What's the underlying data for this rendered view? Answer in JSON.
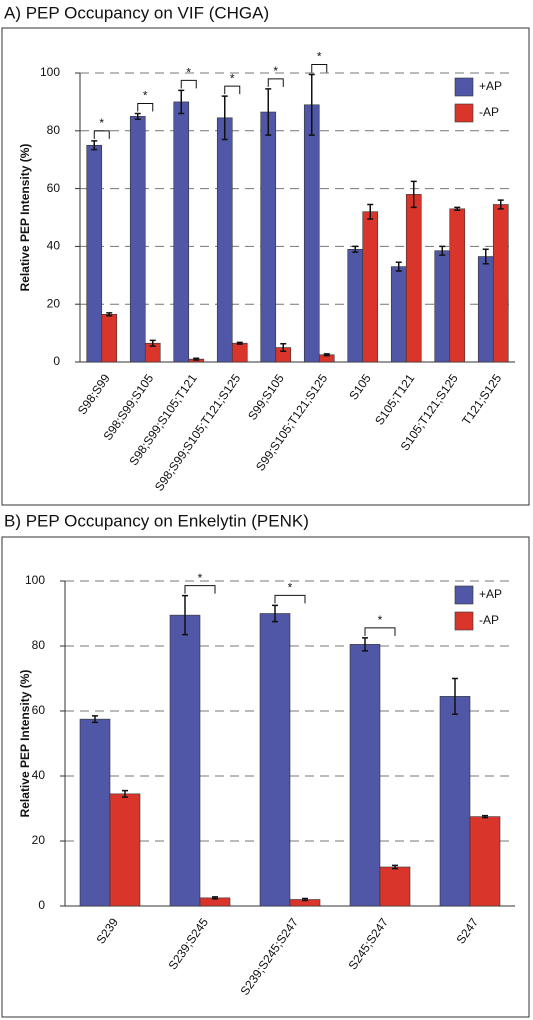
{
  "chart_data": [
    {
      "type": "bar",
      "title": "A) PEP Occupancy on VIF (CHGA)",
      "y_label": "Relative PEP Intensity (%)",
      "categories": [
        "S98;S99",
        "S98;S99;S105",
        "S98;S99;S105;T121",
        "S98;S99;S105;T121;S125",
        "S99;S105",
        "S99;S105;T121;S125",
        "S105",
        "S105;T121",
        "S105;T121;S125",
        "T121;S125"
      ],
      "series": [
        {
          "name": "+AP",
          "color": "#4f57a6",
          "values": [
            75,
            85,
            90,
            84.5,
            86.5,
            89,
            39,
            33,
            38.5,
            36.5
          ],
          "errors": [
            1.5,
            1,
            4,
            7.5,
            8,
            10.5,
            1,
            1.5,
            1.5,
            2.5
          ]
        },
        {
          "name": "-AP",
          "color": "#d9352b",
          "values": [
            16.5,
            6.5,
            1,
            6.5,
            5,
            2.5,
            52,
            58,
            53,
            54.5
          ],
          "errors": [
            0.5,
            1,
            0.3,
            0.3,
            1.3,
            0.3,
            2.5,
            4.5,
            0.5,
            1.5
          ]
        }
      ],
      "significance": [
        "*",
        "*",
        "*",
        "*",
        "*",
        "*",
        null,
        null,
        null,
        null
      ],
      "ylim": [
        0,
        100
      ],
      "yticks": [
        0,
        20,
        40,
        60,
        80,
        100
      ],
      "grid": true,
      "legend": "upper right"
    },
    {
      "type": "bar",
      "title": "B) PEP Occupancy on Enkelytin (PENK)",
      "y_label": "Relative PEP Intensity (%)",
      "categories": [
        "S239",
        "S239;S245",
        "S239;S245;S247",
        "S245;S247",
        "S247"
      ],
      "series": [
        {
          "name": "+AP",
          "color": "#4f57a6",
          "values": [
            57.5,
            89.5,
            90,
            80.5,
            64.5
          ],
          "errors": [
            1,
            6,
            2.5,
            2,
            5.5
          ]
        },
        {
          "name": "-AP",
          "color": "#d9352b",
          "values": [
            34.5,
            2.5,
            2,
            12,
            27.5
          ],
          "errors": [
            1,
            0.3,
            0.3,
            0.5,
            0.3
          ]
        }
      ],
      "significance": [
        null,
        "*",
        "*",
        "*",
        null
      ],
      "ylim": [
        0,
        100
      ],
      "yticks": [
        0,
        20,
        40,
        60,
        80,
        100
      ],
      "grid": true,
      "legend": "upper right"
    }
  ]
}
